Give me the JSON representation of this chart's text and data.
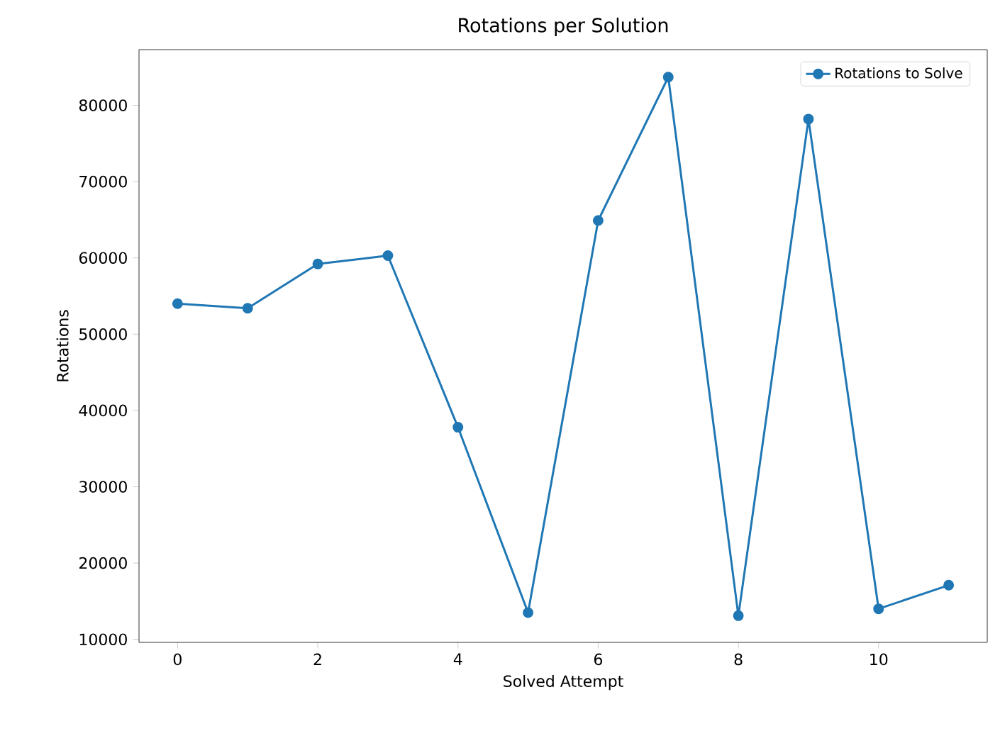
{
  "chart_data": {
    "type": "line",
    "title": "Rotations per Solution",
    "xlabel": "Solved Attempt",
    "ylabel": "Rotations",
    "x": [
      0,
      1,
      2,
      3,
      4,
      5,
      6,
      7,
      8,
      9,
      10,
      11
    ],
    "series": [
      {
        "name": "Rotations to Solve",
        "color": "#1f77b4",
        "values": [
          54000,
          53400,
          59200,
          60300,
          37800,
          13500,
          64900,
          83700,
          13100,
          78200,
          14000,
          17100
        ]
      }
    ],
    "xlim": [
      -0.55,
      11.55
    ],
    "ylim": [
      9600,
      87300
    ],
    "xticks": [
      0,
      2,
      4,
      6,
      8,
      10
    ],
    "yticks": [
      10000,
      20000,
      30000,
      40000,
      50000,
      60000,
      70000,
      80000
    ],
    "legend": "top right",
    "marker": "circle",
    "line_style": "solid",
    "grid": false
  }
}
